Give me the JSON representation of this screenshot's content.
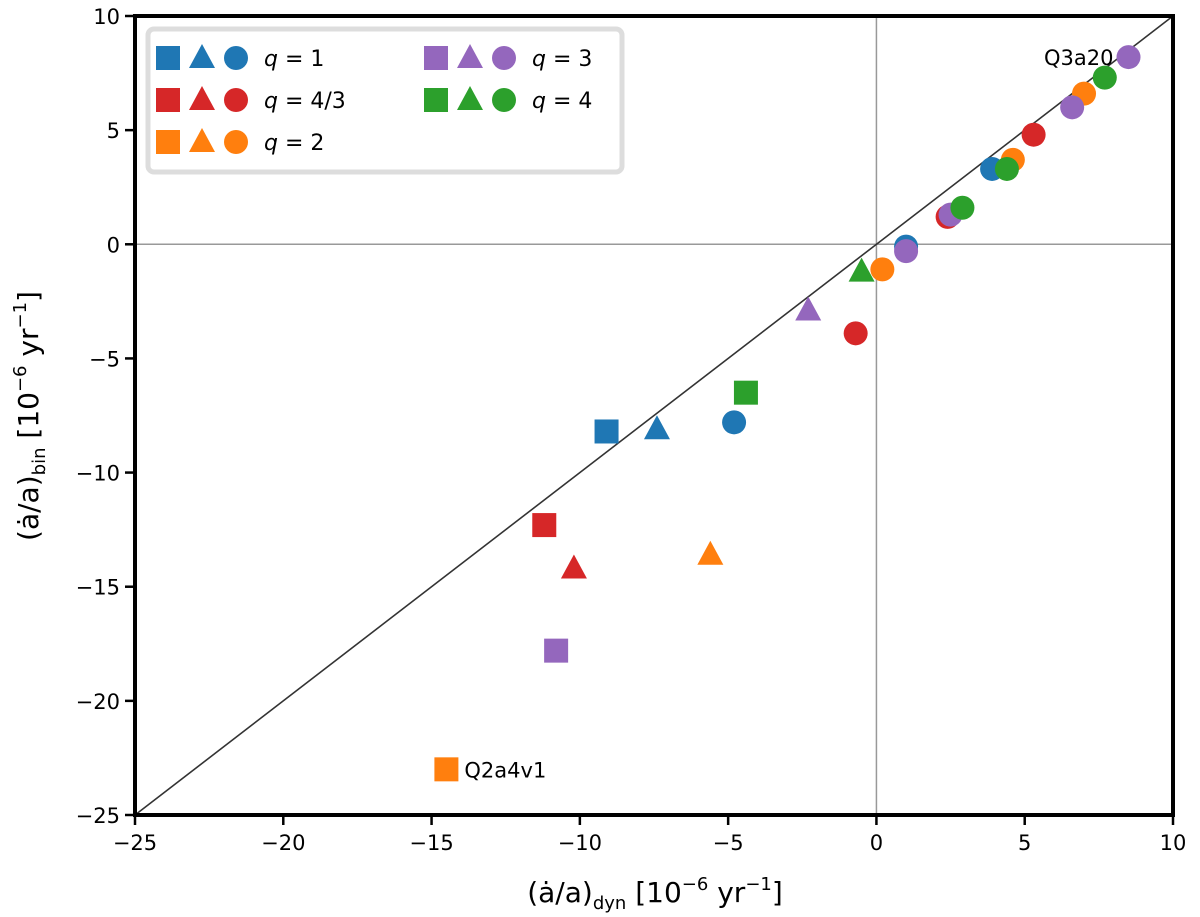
{
  "chart_data": {
    "type": "scatter",
    "xlabel": "(ȧ/a)",
    "xlabel_sub": "dyn",
    "xlabel_unit": "[10",
    "xlabel_exp": "−6",
    "xlabel_unit2": " yr",
    "xlabel_exp2": "−1",
    "xlabel_close": "]",
    "ylabel": "(ȧ/a)",
    "ylabel_sub": "bin",
    "ylabel_unit": "[10",
    "ylabel_exp": "−6",
    "ylabel_unit2": " yr",
    "ylabel_exp2": "−1",
    "ylabel_close": "]",
    "xlim": [
      -25,
      10
    ],
    "ylim": [
      -25,
      10
    ],
    "xticks": [
      -25,
      -20,
      -15,
      -10,
      -5,
      0,
      5,
      10
    ],
    "yticks": [
      -25,
      -20,
      -15,
      -10,
      -5,
      0,
      5,
      10
    ],
    "xtick_labels": [
      "−25",
      "−20",
      "−15",
      "−10",
      "−5",
      "0",
      "5",
      "10"
    ],
    "ytick_labels": [
      "−25",
      "−20",
      "−15",
      "−10",
      "−5",
      "0",
      "5",
      "10"
    ],
    "grid": false,
    "reference_lines": [
      "x=0",
      "y=0",
      "y=x"
    ],
    "legend_position": "top-left",
    "legend": [
      {
        "label_var": "q",
        "label_eq": " = 1",
        "color": "#1f77b4"
      },
      {
        "label_var": "q",
        "label_eq": " = 4/3",
        "color": "#d62728"
      },
      {
        "label_var": "q",
        "label_eq": " = 2",
        "color": "#ff7f0e"
      },
      {
        "label_var": "q",
        "label_eq": " = 3",
        "color": "#9467bd"
      },
      {
        "label_var": "q",
        "label_eq": " = 4",
        "color": "#2ca02c"
      }
    ],
    "marker_names": {
      "square": "square-marker",
      "triangle": "triangle-marker",
      "circle": "circle-marker"
    },
    "series": [
      {
        "color": "#1f77b4",
        "points": [
          {
            "x": -9.1,
            "y": -8.2,
            "marker": "square"
          },
          {
            "x": -7.4,
            "y": -8.1,
            "marker": "triangle"
          },
          {
            "x": -4.8,
            "y": -7.8,
            "marker": "circle"
          },
          {
            "x": 1.0,
            "y": -0.1,
            "marker": "circle"
          },
          {
            "x": 3.9,
            "y": 3.3,
            "marker": "circle"
          }
        ]
      },
      {
        "color": "#d62728",
        "points": [
          {
            "x": -11.2,
            "y": -12.3,
            "marker": "square"
          },
          {
            "x": -10.2,
            "y": -14.2,
            "marker": "triangle"
          },
          {
            "x": -0.7,
            "y": -3.9,
            "marker": "circle"
          },
          {
            "x": 2.4,
            "y": 1.2,
            "marker": "circle"
          },
          {
            "x": 5.3,
            "y": 4.8,
            "marker": "circle"
          }
        ]
      },
      {
        "color": "#ff7f0e",
        "points": [
          {
            "x": -14.5,
            "y": -23.0,
            "marker": "square"
          },
          {
            "x": -5.6,
            "y": -13.6,
            "marker": "triangle"
          },
          {
            "x": 0.2,
            "y": -1.1,
            "marker": "circle"
          },
          {
            "x": 4.6,
            "y": 3.7,
            "marker": "circle"
          },
          {
            "x": 7.0,
            "y": 6.6,
            "marker": "circle"
          }
        ]
      },
      {
        "color": "#9467bd",
        "points": [
          {
            "x": -10.8,
            "y": -17.8,
            "marker": "square"
          },
          {
            "x": -2.3,
            "y": -2.9,
            "marker": "triangle"
          },
          {
            "x": 1.0,
            "y": -0.3,
            "marker": "circle"
          },
          {
            "x": 2.5,
            "y": 1.3,
            "marker": "circle"
          },
          {
            "x": 6.6,
            "y": 6.0,
            "marker": "circle"
          },
          {
            "x": 8.5,
            "y": 8.2,
            "marker": "circle"
          }
        ]
      },
      {
        "color": "#2ca02c",
        "points": [
          {
            "x": -4.4,
            "y": -6.5,
            "marker": "square"
          },
          {
            "x": -0.5,
            "y": -1.2,
            "marker": "triangle"
          },
          {
            "x": 2.9,
            "y": 1.6,
            "marker": "circle"
          },
          {
            "x": 4.4,
            "y": 3.3,
            "marker": "circle"
          },
          {
            "x": 7.7,
            "y": 7.3,
            "marker": "circle"
          }
        ]
      }
    ],
    "annotations": [
      {
        "text": "Q3a20",
        "x": 8.5,
        "y": 8.2
      },
      {
        "text": "Q2a4v1",
        "x": -14.5,
        "y": -23.0
      }
    ]
  }
}
